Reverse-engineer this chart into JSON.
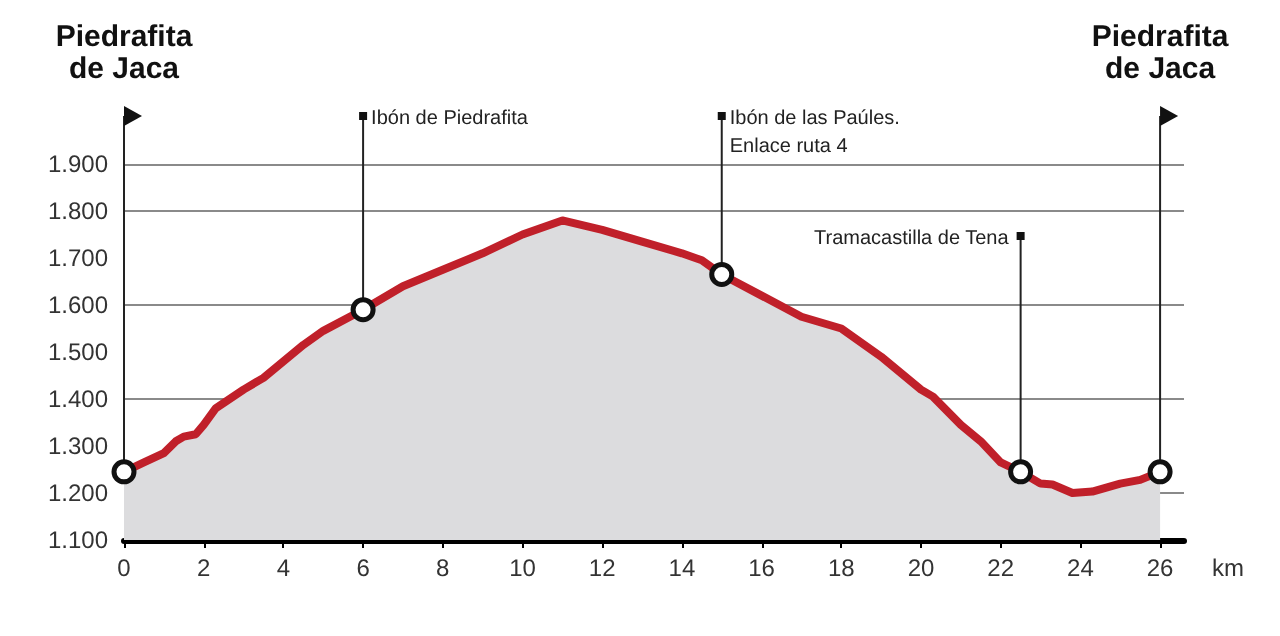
{
  "chart_data": {
    "type": "area",
    "xlabel": "km",
    "series": [
      {
        "color": "#c0202a",
        "x": [
          0,
          0.5,
          1,
          1.3,
          1.5,
          1.8,
          2,
          2.3,
          3,
          3.5,
          4,
          4.5,
          5,
          6,
          7,
          8,
          9,
          10,
          11,
          12,
          13,
          14,
          14.5,
          15,
          16,
          17,
          18,
          19,
          20,
          20.3,
          21,
          21.5,
          22,
          22.5,
          23,
          23.3,
          23.8,
          24.3,
          25,
          25.5,
          26
        ],
        "values": [
          1245,
          1265,
          1285,
          1310,
          1320,
          1325,
          1345,
          1380,
          1420,
          1445,
          1480,
          1515,
          1545,
          1590,
          1640,
          1675,
          1710,
          1750,
          1780,
          1760,
          1735,
          1710,
          1695,
          1665,
          1620,
          1575,
          1550,
          1490,
          1420,
          1405,
          1345,
          1310,
          1265,
          1245,
          1220,
          1218,
          1200,
          1203,
          1220,
          1228,
          1245
        ]
      }
    ],
    "xlim": [
      0,
      26.6
    ],
    "xticks": [
      0,
      2,
      4,
      6,
      8,
      10,
      12,
      14,
      16,
      18,
      20,
      22,
      24,
      26
    ],
    "ylim": [
      1100,
      1900
    ],
    "yticks": [
      {
        "value": 1100,
        "label": "1.100"
      },
      {
        "value": 1200,
        "label": "1.200"
      },
      {
        "value": 1300,
        "label": "1.300"
      },
      {
        "value": 1400,
        "label": "1.400"
      },
      {
        "value": 1500,
        "label": "1.500"
      },
      {
        "value": 1600,
        "label": "1.600"
      },
      {
        "value": 1700,
        "label": "1.700"
      },
      {
        "value": 1800,
        "label": "1.800"
      },
      {
        "value": 1900,
        "label": "1.900"
      }
    ],
    "grid": "y",
    "marker": "none",
    "ref_lines": [
      {
        "axis": "x",
        "value": 0,
        "label": "Piedrafita\nde Jaca"
      },
      {
        "axis": "x",
        "value": 26,
        "label": "Piedrafita\nde Jaca"
      }
    ],
    "annotations": [
      {
        "text": "Ibón de Piedrafita",
        "x": 6,
        "y": 1590
      },
      {
        "text": "Ibón de las Paúles.\nEnlace ruta 4",
        "x": 15,
        "y": 1665
      },
      {
        "text": "Tramacastilla de Tena",
        "x": 22.5,
        "y": 1245
      }
    ]
  }
}
